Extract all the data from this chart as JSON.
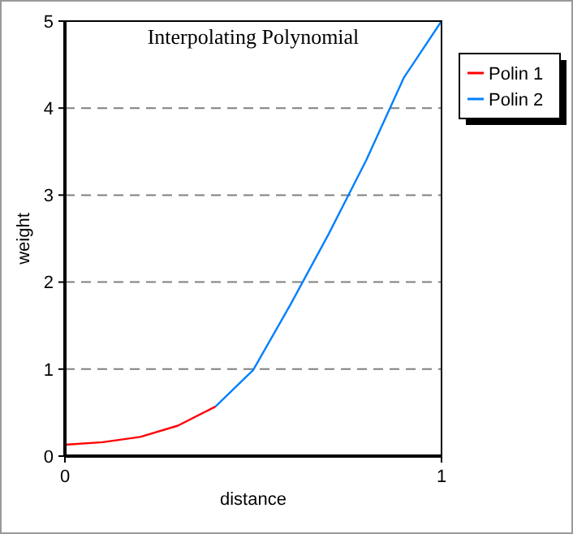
{
  "chart_data": {
    "type": "line",
    "title": "Interpolating Polynomial",
    "xlabel": "distance",
    "ylabel": "weight",
    "xlim": [
      0,
      1
    ],
    "xticks": [
      0,
      1
    ],
    "ylim": [
      0,
      5
    ],
    "yticks": [
      0,
      1,
      2,
      3,
      4,
      5
    ],
    "grid": "y",
    "legend": "top right",
    "marker": "none",
    "line_style": "solid",
    "series": [
      {
        "name": "Polin 1",
        "color": "#ff0000",
        "x": [
          0,
          0.1,
          0.2,
          0.3,
          0.4
        ],
        "values": [
          0.13,
          0.16,
          0.22,
          0.35,
          0.57
        ]
      },
      {
        "name": "Polin 2",
        "color": "#0080ff",
        "x": [
          0.4,
          0.5,
          0.6,
          0.7,
          0.8,
          0.9,
          1
        ],
        "values": [
          0.57,
          0.99,
          1.75,
          2.55,
          3.4,
          4.35,
          5
        ]
      }
    ]
  }
}
